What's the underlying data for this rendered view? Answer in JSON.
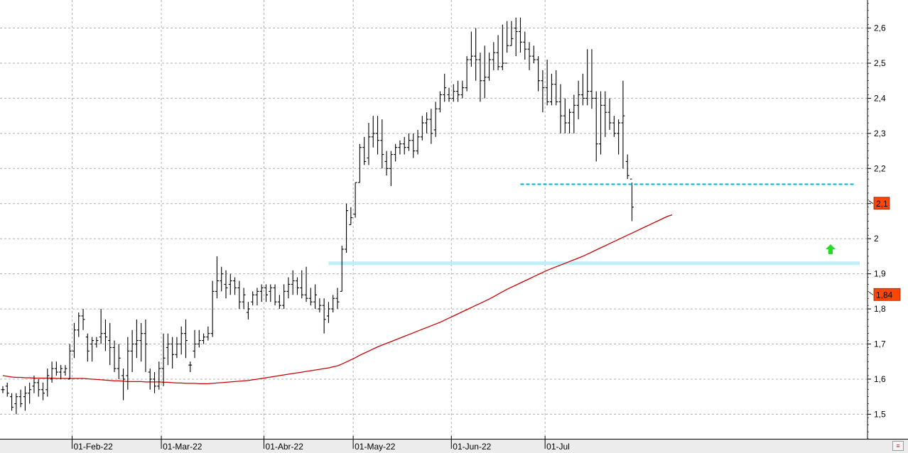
{
  "chart_data": {
    "type": "ohlc",
    "title": "",
    "xlabel": "",
    "ylabel": "",
    "ylim": [
      1.43,
      2.68
    ],
    "y_ticks": [
      1.5,
      1.6,
      1.7,
      1.8,
      1.9,
      2.0,
      2.1,
      2.2,
      2.3,
      2.4,
      2.5,
      2.6
    ],
    "y_tick_labels": [
      "1,5",
      "1,6",
      "1,7",
      "1,8",
      "1,9",
      "2",
      "2,1",
      "2,2",
      "2,3",
      "2,4",
      "2,5",
      "2,6"
    ],
    "x_tick_labels": [
      "01-Feb-22",
      "01-Mar-22",
      "01-Abr-22",
      "01-May-22",
      "01-Jun-22",
      "01-Jul"
    ],
    "x_tick_bars": [
      16,
      36,
      59,
      79,
      101,
      122
    ],
    "grid": true,
    "colors": {
      "bars": "#000000",
      "moving_average": "#cc0000",
      "support_line": "#00b0e0",
      "support_zone": "#bfeef8",
      "arrow": "#22dd22",
      "badge": "#ff4500",
      "grid": "#b0b0b0"
    },
    "series": [
      {
        "kind": "ohlc",
        "bars": [
          [
            1.57,
            1.58,
            1.56,
            1.57
          ],
          [
            1.58,
            1.59,
            1.55,
            1.56
          ],
          [
            1.55,
            1.56,
            1.51,
            1.52
          ],
          [
            1.53,
            1.56,
            1.5,
            1.55
          ],
          [
            1.55,
            1.57,
            1.52,
            1.53
          ],
          [
            1.55,
            1.58,
            1.51,
            1.56
          ],
          [
            1.56,
            1.59,
            1.53,
            1.57
          ],
          [
            1.58,
            1.61,
            1.56,
            1.59
          ],
          [
            1.59,
            1.6,
            1.55,
            1.57
          ],
          [
            1.57,
            1.59,
            1.54,
            1.56
          ],
          [
            1.57,
            1.63,
            1.55,
            1.61
          ],
          [
            1.6,
            1.65,
            1.59,
            1.63
          ],
          [
            1.63,
            1.65,
            1.61,
            1.62
          ],
          [
            1.62,
            1.64,
            1.6,
            1.63
          ],
          [
            1.62,
            1.64,
            1.61,
            1.63
          ],
          [
            1.6,
            1.7,
            1.6,
            1.68
          ],
          [
            1.68,
            1.76,
            1.66,
            1.74
          ],
          [
            1.74,
            1.79,
            1.72,
            1.78
          ],
          [
            1.78,
            1.8,
            1.74,
            1.77
          ],
          [
            1.72,
            1.73,
            1.65,
            1.68
          ],
          [
            1.7,
            1.72,
            1.65,
            1.71
          ],
          [
            1.7,
            1.72,
            1.69,
            1.71
          ],
          [
            1.72,
            1.8,
            1.7,
            1.73
          ],
          [
            1.73,
            1.77,
            1.68,
            1.72
          ],
          [
            1.71,
            1.76,
            1.64,
            1.69
          ],
          [
            1.69,
            1.71,
            1.62,
            1.63
          ],
          [
            1.63,
            1.7,
            1.6,
            1.66
          ],
          [
            1.61,
            1.63,
            1.54,
            1.6
          ],
          [
            1.61,
            1.72,
            1.57,
            1.68
          ],
          [
            1.68,
            1.74,
            1.62,
            1.7
          ],
          [
            1.7,
            1.77,
            1.66,
            1.71
          ],
          [
            1.71,
            1.76,
            1.65,
            1.73
          ],
          [
            1.73,
            1.77,
            1.62,
            1.7
          ],
          [
            1.62,
            1.63,
            1.57,
            1.6
          ],
          [
            1.6,
            1.62,
            1.56,
            1.58
          ],
          [
            1.58,
            1.65,
            1.57,
            1.63
          ],
          [
            1.63,
            1.73,
            1.58,
            1.66
          ],
          [
            1.69,
            1.73,
            1.64,
            1.7
          ],
          [
            1.7,
            1.72,
            1.63,
            1.67
          ],
          [
            1.67,
            1.72,
            1.66,
            1.7
          ],
          [
            1.7,
            1.75,
            1.67,
            1.73
          ],
          [
            1.73,
            1.77,
            1.66,
            1.71
          ],
          [
            1.64,
            1.65,
            1.62,
            1.64
          ],
          [
            1.68,
            1.74,
            1.66,
            1.7
          ],
          [
            1.7,
            1.74,
            1.69,
            1.71
          ],
          [
            1.71,
            1.73,
            1.7,
            1.72
          ],
          [
            1.72,
            1.75,
            1.71,
            1.73
          ],
          [
            1.73,
            1.88,
            1.72,
            1.85
          ],
          [
            1.85,
            1.95,
            1.83,
            1.88
          ],
          [
            1.88,
            1.92,
            1.85,
            1.9
          ],
          [
            1.87,
            1.91,
            1.83,
            1.86
          ],
          [
            1.87,
            1.9,
            1.84,
            1.88
          ],
          [
            1.88,
            1.89,
            1.84,
            1.86
          ],
          [
            1.86,
            1.88,
            1.8,
            1.82
          ],
          [
            1.82,
            1.86,
            1.8,
            1.84
          ],
          [
            1.79,
            1.82,
            1.77,
            1.8
          ],
          [
            1.82,
            1.85,
            1.81,
            1.84
          ],
          [
            1.84,
            1.86,
            1.81,
            1.85
          ],
          [
            1.85,
            1.87,
            1.82,
            1.86
          ],
          [
            1.86,
            1.87,
            1.82,
            1.84
          ],
          [
            1.85,
            1.87,
            1.82,
            1.86
          ],
          [
            1.86,
            1.87,
            1.81,
            1.82
          ],
          [
            1.82,
            1.84,
            1.8,
            1.81
          ],
          [
            1.81,
            1.87,
            1.8,
            1.85
          ],
          [
            1.85,
            1.89,
            1.83,
            1.87
          ],
          [
            1.87,
            1.91,
            1.84,
            1.88
          ],
          [
            1.88,
            1.89,
            1.84,
            1.86
          ],
          [
            1.86,
            1.91,
            1.83,
            1.84
          ],
          [
            1.84,
            1.92,
            1.82,
            1.83
          ],
          [
            1.83,
            1.86,
            1.81,
            1.82
          ],
          [
            1.82,
            1.87,
            1.8,
            1.84
          ],
          [
            1.8,
            1.83,
            1.79,
            1.81
          ],
          [
            1.81,
            1.83,
            1.73,
            1.77
          ],
          [
            1.78,
            1.82,
            1.76,
            1.8
          ],
          [
            1.8,
            1.84,
            1.79,
            1.83
          ],
          [
            1.83,
            1.86,
            1.8,
            1.82
          ],
          [
            1.85,
            1.98,
            1.85,
            1.97
          ],
          [
            1.97,
            2.1,
            1.96,
            2.08
          ],
          [
            2.04,
            2.09,
            2.04,
            2.06
          ],
          [
            2.07,
            2.16,
            2.06,
            2.16
          ],
          [
            2.16,
            2.27,
            2.16,
            2.26
          ],
          [
            2.26,
            2.29,
            2.21,
            2.22
          ],
          [
            2.23,
            2.33,
            2.21,
            2.29
          ],
          [
            2.29,
            2.35,
            2.26,
            2.3
          ],
          [
            2.3,
            2.35,
            2.24,
            2.28
          ],
          [
            2.28,
            2.34,
            2.2,
            2.24
          ],
          [
            2.22,
            2.25,
            2.18,
            2.2
          ],
          [
            2.2,
            2.25,
            2.15,
            2.24
          ],
          [
            2.24,
            2.27,
            2.22,
            2.26
          ],
          [
            2.26,
            2.28,
            2.24,
            2.27
          ],
          [
            2.27,
            2.29,
            2.24,
            2.26
          ],
          [
            2.26,
            2.3,
            2.25,
            2.28
          ],
          [
            2.28,
            2.3,
            2.23,
            2.25
          ],
          [
            2.25,
            2.31,
            2.24,
            2.29
          ],
          [
            2.29,
            2.35,
            2.28,
            2.33
          ],
          [
            2.33,
            2.36,
            2.3,
            2.34
          ],
          [
            2.34,
            2.37,
            2.27,
            2.3
          ],
          [
            2.31,
            2.39,
            2.29,
            2.37
          ],
          [
            2.37,
            2.42,
            2.36,
            2.41
          ],
          [
            2.41,
            2.47,
            2.39,
            2.43
          ],
          [
            2.41,
            2.43,
            2.39,
            2.4
          ],
          [
            2.4,
            2.44,
            2.39,
            2.42
          ],
          [
            2.42,
            2.45,
            2.39,
            2.41
          ],
          [
            2.41,
            2.45,
            2.4,
            2.43
          ],
          [
            2.43,
            2.52,
            2.42,
            2.51
          ],
          [
            2.51,
            2.59,
            2.49,
            2.52
          ],
          [
            2.52,
            2.6,
            2.45,
            2.51
          ],
          [
            2.51,
            2.53,
            2.39,
            2.45
          ],
          [
            2.45,
            2.55,
            2.4,
            2.46
          ],
          [
            2.46,
            2.53,
            2.45,
            2.51
          ],
          [
            2.51,
            2.56,
            2.48,
            2.53
          ],
          [
            2.53,
            2.58,
            2.48,
            2.49
          ],
          [
            2.49,
            2.61,
            2.48,
            2.5
          ],
          [
            2.5,
            2.62,
            2.53,
            2.55
          ],
          [
            2.55,
            2.62,
            2.55,
            2.57
          ],
          [
            2.6,
            2.63,
            2.52,
            2.59
          ],
          [
            2.59,
            2.63,
            2.53,
            2.56
          ],
          [
            2.56,
            2.59,
            2.51,
            2.54
          ],
          [
            2.54,
            2.56,
            2.48,
            2.52
          ],
          [
            2.52,
            2.55,
            2.5,
            2.51
          ],
          [
            2.51,
            2.52,
            2.42,
            2.45
          ],
          [
            2.45,
            2.48,
            2.36,
            2.43
          ],
          [
            2.43,
            2.51,
            2.38,
            2.39
          ],
          [
            2.39,
            2.47,
            2.38,
            2.44
          ],
          [
            2.44,
            2.48,
            2.38,
            2.39
          ],
          [
            2.39,
            2.44,
            2.3,
            2.35
          ],
          [
            2.35,
            2.4,
            2.3,
            2.33
          ],
          [
            2.33,
            2.37,
            2.3,
            2.36
          ],
          [
            2.36,
            2.41,
            2.3,
            2.38
          ],
          [
            2.38,
            2.45,
            2.34,
            2.41
          ],
          [
            2.41,
            2.47,
            2.38,
            2.4
          ],
          [
            2.4,
            2.54,
            2.38,
            2.42
          ],
          [
            2.42,
            2.54,
            2.37,
            2.4
          ],
          [
            2.4,
            2.42,
            2.22,
            2.27
          ],
          [
            2.27,
            2.42,
            2.24,
            2.38
          ],
          [
            2.38,
            2.42,
            2.29,
            2.36
          ],
          [
            2.36,
            2.4,
            2.31,
            2.33
          ],
          [
            2.33,
            2.35,
            2.29,
            2.3
          ],
          [
            2.3,
            2.34,
            2.24,
            2.33
          ],
          [
            2.33,
            2.45,
            2.2,
            2.35
          ],
          [
            2.22,
            2.24,
            2.17,
            2.18
          ],
          [
            2.17,
            2.16,
            2.05,
            2.09
          ]
        ]
      },
      {
        "kind": "line",
        "values": [
          1.61,
          1.608,
          1.606,
          1.605,
          1.605,
          1.604,
          1.604,
          1.603,
          1.603,
          1.603,
          1.603,
          1.603,
          1.602,
          1.602,
          1.602,
          1.602,
          1.602,
          1.602,
          1.602,
          1.601,
          1.6,
          1.599,
          1.598,
          1.597,
          1.596,
          1.595,
          1.595,
          1.594,
          1.593,
          1.593,
          1.593,
          1.593,
          1.592,
          1.592,
          1.592,
          1.592,
          1.591,
          1.591,
          1.59,
          1.589,
          1.589,
          1.588,
          1.588,
          1.588,
          1.587,
          1.587,
          1.587,
          1.588,
          1.589,
          1.59,
          1.591,
          1.592,
          1.593,
          1.594,
          1.595,
          1.596,
          1.598,
          1.6,
          1.602,
          1.604,
          1.606,
          1.608,
          1.61,
          1.612,
          1.614,
          1.616,
          1.618,
          1.62,
          1.622,
          1.624,
          1.626,
          1.628,
          1.63,
          1.632,
          1.635,
          1.638,
          1.643,
          1.649,
          1.655,
          1.661,
          1.668,
          1.674,
          1.68,
          1.686,
          1.692,
          1.697,
          1.702,
          1.707,
          1.712,
          1.717,
          1.722,
          1.727,
          1.732,
          1.737,
          1.742,
          1.747,
          1.752,
          1.757,
          1.762,
          1.768,
          1.774,
          1.78,
          1.786,
          1.792,
          1.798,
          1.804,
          1.81,
          1.816,
          1.822,
          1.828,
          1.835,
          1.842,
          1.849,
          1.856,
          1.862,
          1.868,
          1.874,
          1.88,
          1.886,
          1.892,
          1.898,
          1.904,
          1.91,
          1.915,
          1.92,
          1.925,
          1.93,
          1.935,
          1.94,
          1.945,
          1.95,
          1.956,
          1.962,
          1.968,
          1.974,
          1.98,
          1.986,
          1.992,
          1.998,
          2.004,
          2.01,
          2.016,
          2.022,
          2.028,
          2.034,
          2.04,
          2.046,
          2.052,
          2.058,
          2.064,
          2.068
        ]
      }
    ],
    "support_level": 2.155,
    "support_zone_level": 1.93,
    "arrow_level": 1.97,
    "badges": [
      {
        "value": 2.1,
        "label": "2,1"
      },
      {
        "value": 1.84,
        "label": "1,84"
      }
    ]
  }
}
